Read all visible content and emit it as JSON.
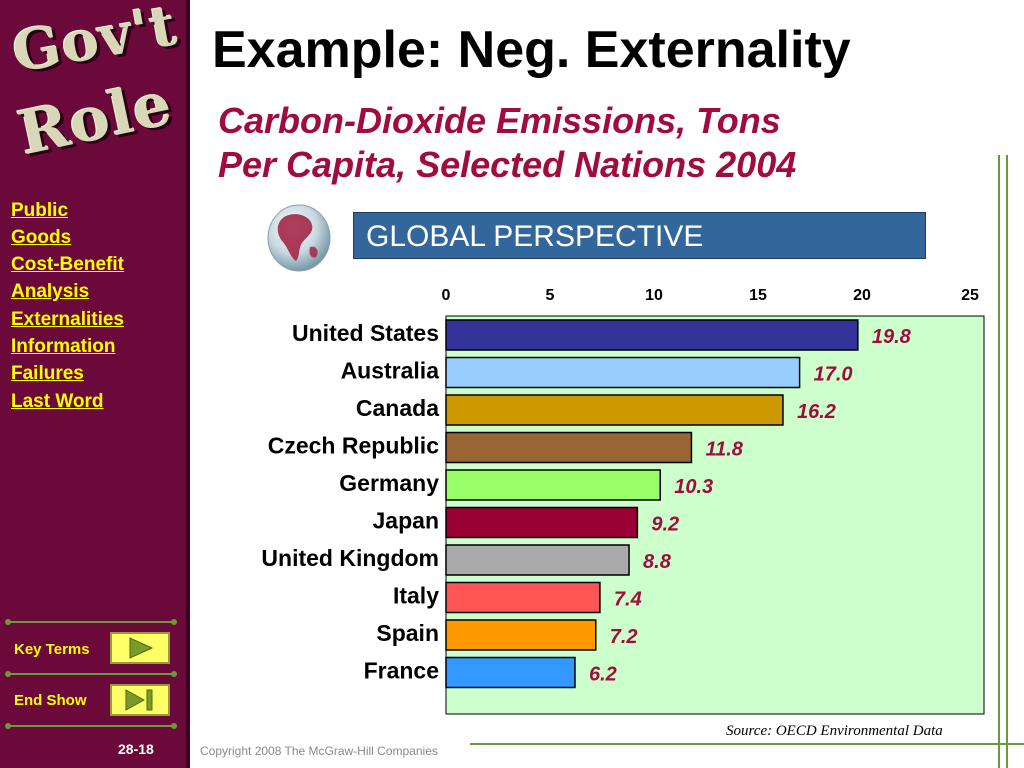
{
  "sidebar": {
    "logo_line1": "Gov't",
    "logo_line2": "Role",
    "nav_links": [
      "Public",
      "Goods",
      "Cost-Benefit",
      "Analysis",
      "Externalities",
      "Information",
      "Failures",
      "Last Word"
    ],
    "key_terms_label": "Key Terms",
    "end_show_label": "End Show",
    "slide_number": "28-18"
  },
  "slide": {
    "title": "Example: Neg. Externality",
    "subtitle_line1": "Carbon-Dioxide Emissions, Tons",
    "subtitle_line2": "Per Capita, Selected Nations 2004",
    "global_perspective": "GLOBAL PERSPECTIVE",
    "source": "Source: OECD Environmental Data",
    "copyright": "Copyright 2008 The McGraw-Hill Companies"
  },
  "colors": {
    "sidebar_bg": "#6b0a3a",
    "accent": "#a00c3c",
    "link": "#ffff00",
    "plot_bg": "#ccffcc",
    "banner_bg": "#33679c"
  },
  "chart_data": {
    "type": "bar",
    "orientation": "horizontal",
    "categories": [
      "United States",
      "Australia",
      "Canada",
      "Czech Republic",
      "Germany",
      "Japan",
      "United Kingdom",
      "Italy",
      "Spain",
      "France"
    ],
    "values": [
      19.8,
      17.0,
      16.2,
      11.8,
      10.3,
      9.2,
      8.8,
      7.4,
      7.2,
      6.2
    ],
    "value_labels": [
      "19.8",
      "17.0",
      "16.2",
      "11.8",
      "10.3",
      "9.2",
      "8.8",
      "7.4",
      "7.2",
      "6.2"
    ],
    "bar_colors": [
      "#333399",
      "#99ccff",
      "#cc9900",
      "#996633",
      "#99ff66",
      "#990033",
      "#aaaaaa",
      "#ff5555",
      "#ff9900",
      "#3399ff"
    ],
    "xlim": [
      0,
      25
    ],
    "x_ticks": [
      "0",
      "5",
      "10",
      "15",
      "20",
      "25"
    ],
    "x_tick_position": "top",
    "grid": false,
    "legend": false
  }
}
